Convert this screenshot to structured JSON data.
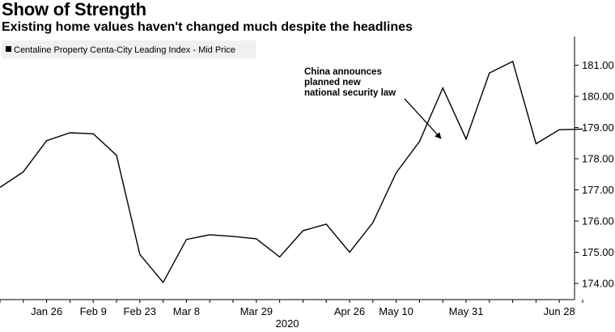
{
  "chart_data": {
    "type": "line",
    "title": "Show of Strength",
    "subtitle": "Existing home values haven't changed much despite the headlines",
    "xlabel": "2020",
    "ylabel": "",
    "legend": {
      "placement": "top-left",
      "entries": [
        "Centaline Property Centa-City Leading Index - Mid Price"
      ]
    },
    "ylim": [
      173.4,
      181.9
    ],
    "y_ticks": [
      "174.00",
      "175.00",
      "176.00",
      "177.00",
      "178.00",
      "179.00",
      "180.00",
      "181.00"
    ],
    "x_tick_labels": [
      "Jan 26",
      "Feb 9",
      "Feb 23",
      "Mar 8",
      "Mar 29",
      "Apr 26",
      "May 10",
      "May 31",
      "Jun 28"
    ],
    "grid": false,
    "series": [
      {
        "name": "Centaline Property Centa-City Leading Index - Mid Price",
        "x": [
          "Jan 12",
          "Jan 19",
          "Jan 26",
          "Feb 2",
          "Feb 9",
          "Feb 16",
          "Feb 23",
          "Mar 1",
          "Mar 8",
          "Mar 15",
          "Mar 22",
          "Mar 29",
          "Apr 5",
          "Apr 12",
          "Apr 19",
          "Apr 26",
          "May 3",
          "May 10",
          "May 17",
          "May 24",
          "May 31",
          "Jun 7",
          "Jun 14",
          "Jun 21",
          "Jun 28",
          "Jul 5"
        ],
        "values": [
          177.08,
          177.58,
          178.58,
          178.83,
          178.8,
          178.11,
          174.93,
          174.03,
          175.41,
          175.56,
          175.51,
          175.43,
          174.85,
          175.69,
          175.9,
          175.0,
          175.95,
          177.55,
          178.55,
          180.27,
          178.63,
          180.75,
          181.12,
          178.48,
          178.93,
          178.95
        ]
      }
    ],
    "annotations": [
      {
        "text": [
          "China announces",
          "planned new",
          "national security law"
        ],
        "points_to": "May 24"
      }
    ],
    "accent_color": "#000000"
  }
}
